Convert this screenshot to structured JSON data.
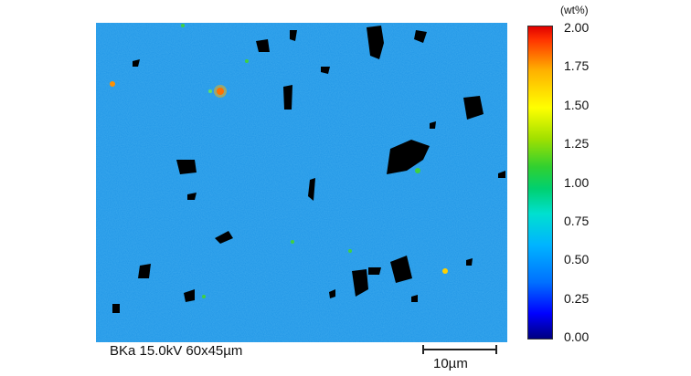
{
  "caption": "BKa 15.0kV 60x45µm",
  "scalebar_label": "10µm",
  "colorbar": {
    "unit": "(wt%)",
    "ticks": [
      "2.00",
      "1.75",
      "1.50",
      "1.25",
      "1.00",
      "0.75",
      "0.50",
      "0.25",
      "0.00"
    ]
  },
  "colors": {
    "background_map": "#1f9ae8",
    "void": "#000000",
    "hotspot": "#ff3000"
  }
}
